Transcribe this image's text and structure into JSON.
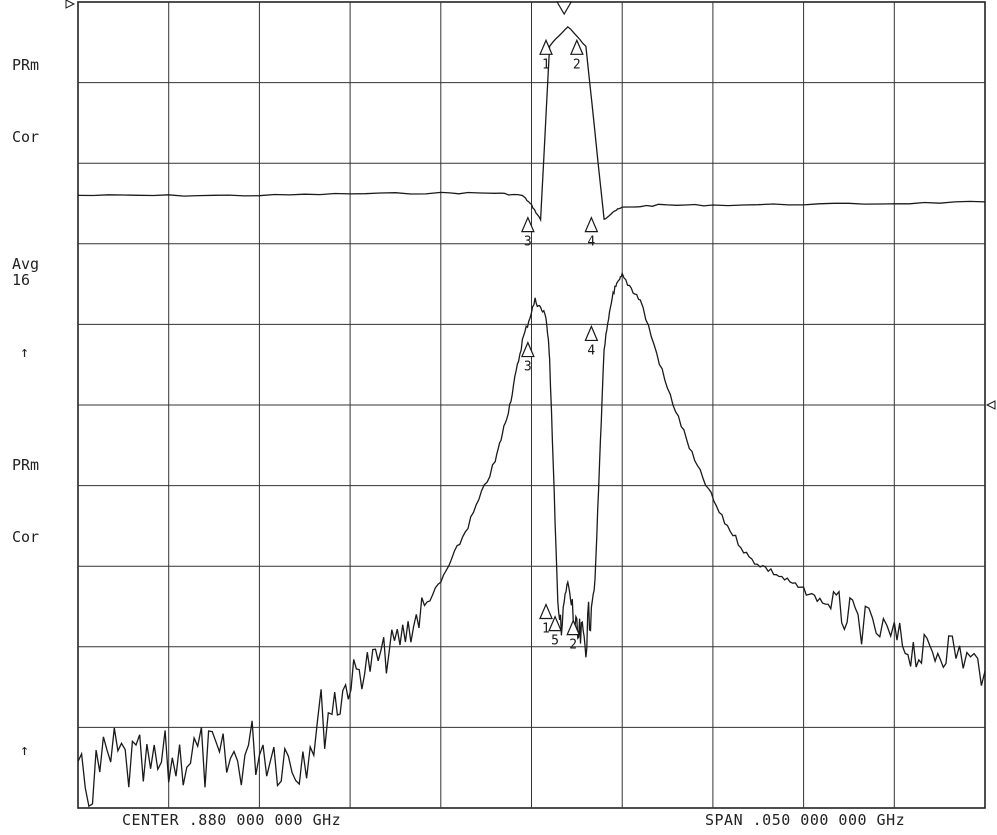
{
  "annotations": {
    "upper_trace": {
      "format": "PRm",
      "correction": "Cor",
      "averaging": "Avg\n16",
      "ref_arrow": "↑"
    },
    "lower_trace": {
      "format": "PRm",
      "correction": "Cor",
      "ref_arrow": "↑"
    }
  },
  "footer": {
    "center": "CENTER .880 000 000 GHz",
    "span": "SPAN .050 000 000 GHz"
  },
  "chart_data": {
    "type": "line",
    "x_center_ghz": 0.88,
    "x_span_ghz": 0.05,
    "xlim": [
      0.855,
      0.905
    ],
    "grid": {
      "columns": 10,
      "rows": 10,
      "visible": true
    },
    "y_axis": "divisions from top (0) to bottom (10)",
    "series": [
      {
        "x": [
          0.855,
          0.86,
          0.865,
          0.87,
          0.875,
          0.878,
          0.8795,
          0.88,
          0.8805,
          0.881,
          0.882,
          0.883,
          0.884,
          0.8845,
          0.885,
          0.887,
          0.89,
          0.895,
          0.9,
          0.905
        ],
        "y": [
          2.4,
          2.4,
          2.4,
          2.38,
          2.37,
          2.37,
          2.4,
          2.52,
          2.7,
          0.55,
          0.3,
          0.55,
          2.7,
          2.6,
          2.55,
          2.52,
          2.52,
          2.51,
          2.5,
          2.48
        ]
      },
      {
        "x": [
          0.855,
          0.857,
          0.859,
          0.861,
          0.863,
          0.865,
          0.867,
          0.869,
          0.8705,
          0.872,
          0.8735,
          0.875,
          0.8765,
          0.878,
          0.8788,
          0.8795,
          0.8802,
          0.8808,
          0.881,
          0.8815,
          0.882,
          0.8825,
          0.883,
          0.8835,
          0.884,
          0.8845,
          0.885,
          0.886,
          0.8875,
          0.889,
          0.8905,
          0.892,
          0.8935,
          0.895,
          0.8965,
          0.898,
          0.9,
          0.9015,
          0.903,
          0.905
        ],
        "y": [
          9.8,
          9.4,
          9.6,
          9.3,
          9.5,
          9.2,
          9.4,
          8.7,
          8.3,
          8.1,
          7.7,
          7.2,
          6.5,
          5.7,
          5.0,
          4.2,
          3.7,
          3.9,
          4.4,
          7.8,
          7.2,
          7.9,
          7.9,
          7.2,
          4.3,
          3.6,
          3.4,
          3.7,
          4.8,
          5.7,
          6.4,
          6.9,
          7.1,
          7.3,
          7.5,
          7.7,
          7.9,
          8.1,
          8.0,
          8.3
        ]
      }
    ],
    "markers": [
      {
        "label": "1",
        "x": 0.8808,
        "y": 0.55
      },
      {
        "label": "2",
        "x": 0.8825,
        "y": 0.55
      },
      {
        "label": "3",
        "x": 0.8798,
        "y": 2.75
      },
      {
        "label": "4",
        "x": 0.8833,
        "y": 2.75
      },
      {
        "label": "3",
        "x": 0.8798,
        "y": 4.3
      },
      {
        "label": "4",
        "x": 0.8833,
        "y": 4.1
      },
      {
        "label": "1",
        "x": 0.8808,
        "y": 7.55
      },
      {
        "label": "5",
        "x": 0.8813,
        "y": 7.7
      },
      {
        "label": "2",
        "x": 0.8823,
        "y": 7.75
      }
    ]
  }
}
